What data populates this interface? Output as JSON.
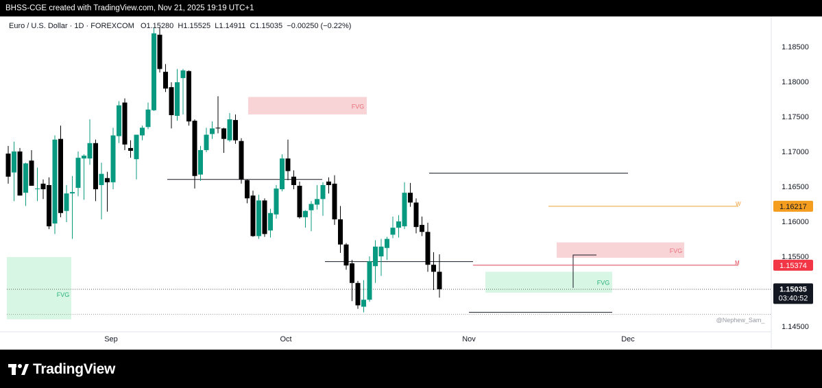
{
  "header": {
    "caption": "BHSS-CGE created with TradingView.com, Nov 21, 2025 19:19 UTC+1"
  },
  "symbol": {
    "name": "Euro / U.S. Dollar · 1D · FOREXCOM",
    "open": "O1.15280",
    "high": "H1.15525",
    "low": "L1.14911",
    "close": "C1.15035",
    "change": "−0.00250 (−0.22%)"
  },
  "colors": {
    "up": "#089981",
    "down": "#000000",
    "fvg_red": "#f7c6c9",
    "fvg_green": "#c8f2d8",
    "w_line": "#f0a030",
    "m_line": "#e04050",
    "w_tag": "#f59d1f",
    "m_tag": "#f23645"
  },
  "watermark": "@Nephew_Sam_",
  "brand": {
    "name": "TradingView",
    "logo_icon": "tradingview-logo-icon"
  },
  "chart_data": {
    "type": "candlestick",
    "y_ticks": [
      "1.18500",
      "1.18000",
      "1.17500",
      "1.17000",
      "1.16500",
      "1.16000",
      "1.15500",
      "1.14500"
    ],
    "y_tick_values": [
      1.185,
      1.18,
      1.175,
      1.17,
      1.165,
      1.16,
      1.155,
      1.145
    ],
    "x_ticks": [
      "Sep",
      "Oct",
      "Nov",
      "Dec"
    ],
    "ylim": [
      1.1435,
      1.19
    ],
    "price_labels": {
      "w": {
        "text": "1.16217",
        "value": 1.16217,
        "marker": "W"
      },
      "m": {
        "text": "1.15374",
        "value": 1.15374,
        "marker": "M"
      },
      "last": {
        "text": "1.15035",
        "value": 1.15035,
        "countdown": "03:40:52"
      }
    },
    "fvg_label": "FVG",
    "fvg_zones": [
      {
        "color": "red",
        "top": 1.1778,
        "bottom": 1.1753
      },
      {
        "color": "red",
        "top": 1.157,
        "bottom": 1.1548
      },
      {
        "color": "green",
        "top": 1.1528,
        "bottom": 1.1498
      },
      {
        "color": "green",
        "top": 1.1549,
        "bottom": 1.146
      }
    ],
    "levels": [
      1.166,
      1.15425,
      1.1669,
      1.147
    ],
    "candles": [
      {
        "o": 1.1697,
        "h": 1.1708,
        "l": 1.1654,
        "c": 1.1664
      },
      {
        "o": 1.167,
        "h": 1.1714,
        "l": 1.1629,
        "c": 1.17
      },
      {
        "o": 1.17,
        "h": 1.1705,
        "l": 1.1637,
        "c": 1.1637
      },
      {
        "o": 1.1641,
        "h": 1.1684,
        "l": 1.1622,
        "c": 1.1683
      },
      {
        "o": 1.1687,
        "h": 1.1702,
        "l": 1.1651,
        "c": 1.1651
      },
      {
        "o": 1.1647,
        "h": 1.1677,
        "l": 1.1629,
        "c": 1.1647
      },
      {
        "o": 1.1654,
        "h": 1.166,
        "l": 1.1632,
        "c": 1.1646
      },
      {
        "o": 1.1652,
        "h": 1.1663,
        "l": 1.1589,
        "c": 1.1593
      },
      {
        "o": 1.1597,
        "h": 1.1723,
        "l": 1.1582,
        "c": 1.1717
      },
      {
        "o": 1.1718,
        "h": 1.1737,
        "l": 1.1606,
        "c": 1.1612
      },
      {
        "o": 1.1615,
        "h": 1.1652,
        "l": 1.1599,
        "c": 1.164
      },
      {
        "o": 1.164,
        "h": 1.1665,
        "l": 1.1575,
        "c": 1.1642
      },
      {
        "o": 1.1648,
        "h": 1.17,
        "l": 1.1636,
        "c": 1.1691
      },
      {
        "o": 1.169,
        "h": 1.1696,
        "l": 1.1631,
        "c": 1.1694
      },
      {
        "o": 1.169,
        "h": 1.1746,
        "l": 1.1681,
        "c": 1.1712
      },
      {
        "o": 1.1712,
        "h": 1.1717,
        "l": 1.1629,
        "c": 1.1646
      },
      {
        "o": 1.1652,
        "h": 1.1684,
        "l": 1.1603,
        "c": 1.1668
      },
      {
        "o": 1.1662,
        "h": 1.1671,
        "l": 1.1614,
        "c": 1.1656
      },
      {
        "o": 1.1656,
        "h": 1.1734,
        "l": 1.1646,
        "c": 1.1723
      },
      {
        "o": 1.1722,
        "h": 1.1772,
        "l": 1.1712,
        "c": 1.1766
      },
      {
        "o": 1.177,
        "h": 1.1776,
        "l": 1.1702,
        "c": 1.171
      },
      {
        "o": 1.1705,
        "h": 1.1716,
        "l": 1.1691,
        "c": 1.1701
      },
      {
        "o": 1.1689,
        "h": 1.1724,
        "l": 1.166,
        "c": 1.1724
      },
      {
        "o": 1.1723,
        "h": 1.1737,
        "l": 1.1716,
        "c": 1.1734
      },
      {
        "o": 1.1735,
        "h": 1.177,
        "l": 1.1732,
        "c": 1.176
      },
      {
        "o": 1.1759,
        "h": 1.1877,
        "l": 1.1758,
        "c": 1.1869
      },
      {
        "o": 1.1867,
        "h": 1.1878,
        "l": 1.1813,
        "c": 1.1818
      },
      {
        "o": 1.1814,
        "h": 1.1825,
        "l": 1.1785,
        "c": 1.179
      },
      {
        "o": 1.1792,
        "h": 1.1799,
        "l": 1.1733,
        "c": 1.1752
      },
      {
        "o": 1.1751,
        "h": 1.1818,
        "l": 1.1744,
        "c": 1.1799
      },
      {
        "o": 1.1805,
        "h": 1.1818,
        "l": 1.1753,
        "c": 1.1816
      },
      {
        "o": 1.1815,
        "h": 1.1816,
        "l": 1.1737,
        "c": 1.1743
      },
      {
        "o": 1.1744,
        "h": 1.1746,
        "l": 1.1647,
        "c": 1.1665
      },
      {
        "o": 1.1667,
        "h": 1.1708,
        "l": 1.1658,
        "c": 1.1702
      },
      {
        "o": 1.1702,
        "h": 1.1734,
        "l": 1.1699,
        "c": 1.1724
      },
      {
        "o": 1.1725,
        "h": 1.1743,
        "l": 1.1718,
        "c": 1.1733
      },
      {
        "o": 1.1734,
        "h": 1.1779,
        "l": 1.1726,
        "c": 1.1733
      },
      {
        "o": 1.1733,
        "h": 1.1734,
        "l": 1.1698,
        "c": 1.1718
      },
      {
        "o": 1.1716,
        "h": 1.1755,
        "l": 1.1714,
        "c": 1.1746
      },
      {
        "o": 1.1745,
        "h": 1.1753,
        "l": 1.1711,
        "c": 1.1716
      },
      {
        "o": 1.1715,
        "h": 1.1719,
        "l": 1.1654,
        "c": 1.166
      },
      {
        "o": 1.1659,
        "h": 1.166,
        "l": 1.1626,
        "c": 1.1633
      },
      {
        "o": 1.1637,
        "h": 1.1644,
        "l": 1.1578,
        "c": 1.1579
      },
      {
        "o": 1.1579,
        "h": 1.1638,
        "l": 1.1575,
        "c": 1.163
      },
      {
        "o": 1.163,
        "h": 1.1633,
        "l": 1.1578,
        "c": 1.1582
      },
      {
        "o": 1.1587,
        "h": 1.1618,
        "l": 1.1577,
        "c": 1.1612
      },
      {
        "o": 1.161,
        "h": 1.1652,
        "l": 1.1604,
        "c": 1.1647
      },
      {
        "o": 1.1646,
        "h": 1.1696,
        "l": 1.1643,
        "c": 1.169
      },
      {
        "o": 1.169,
        "h": 1.1717,
        "l": 1.1659,
        "c": 1.1672
      },
      {
        "o": 1.1664,
        "h": 1.1673,
        "l": 1.1646,
        "c": 1.1652
      },
      {
        "o": 1.1651,
        "h": 1.1657,
        "l": 1.1604,
        "c": 1.1606
      },
      {
        "o": 1.1606,
        "h": 1.1616,
        "l": 1.1591,
        "c": 1.1615
      },
      {
        "o": 1.1616,
        "h": 1.1629,
        "l": 1.1586,
        "c": 1.1625
      },
      {
        "o": 1.1624,
        "h": 1.1652,
        "l": 1.1617,
        "c": 1.1632
      },
      {
        "o": 1.1632,
        "h": 1.1656,
        "l": 1.1608,
        "c": 1.1652
      },
      {
        "o": 1.1657,
        "h": 1.1663,
        "l": 1.164,
        "c": 1.1652
      },
      {
        "o": 1.1654,
        "h": 1.1666,
        "l": 1.1595,
        "c": 1.1603
      },
      {
        "o": 1.1603,
        "h": 1.1622,
        "l": 1.1555,
        "c": 1.1567
      },
      {
        "o": 1.1567,
        "h": 1.1569,
        "l": 1.1531,
        "c": 1.1537
      },
      {
        "o": 1.154,
        "h": 1.1545,
        "l": 1.1486,
        "c": 1.1512
      },
      {
        "o": 1.1512,
        "h": 1.1515,
        "l": 1.1475,
        "c": 1.148
      },
      {
        "o": 1.1478,
        "h": 1.1516,
        "l": 1.147,
        "c": 1.1488
      },
      {
        "o": 1.1488,
        "h": 1.155,
        "l": 1.1485,
        "c": 1.1543
      },
      {
        "o": 1.1536,
        "h": 1.1573,
        "l": 1.1512,
        "c": 1.1564
      },
      {
        "o": 1.155,
        "h": 1.1575,
        "l": 1.1522,
        "c": 1.1564
      },
      {
        "o": 1.1562,
        "h": 1.1578,
        "l": 1.1545,
        "c": 1.1575
      },
      {
        "o": 1.1581,
        "h": 1.1607,
        "l": 1.1576,
        "c": 1.1591
      },
      {
        "o": 1.1591,
        "h": 1.1609,
        "l": 1.1577,
        "c": 1.16
      },
      {
        "o": 1.1593,
        "h": 1.1656,
        "l": 1.1589,
        "c": 1.1641
      },
      {
        "o": 1.1641,
        "h": 1.1655,
        "l": 1.1621,
        "c": 1.1627
      },
      {
        "o": 1.1627,
        "h": 1.1633,
        "l": 1.1583,
        "c": 1.1592
      },
      {
        "o": 1.1595,
        "h": 1.1607,
        "l": 1.1579,
        "c": 1.1585
      },
      {
        "o": 1.1585,
        "h": 1.1598,
        "l": 1.1528,
        "c": 1.1538
      },
      {
        "o": 1.1538,
        "h": 1.1556,
        "l": 1.1502,
        "c": 1.1528
      },
      {
        "o": 1.1528,
        "h": 1.1553,
        "l": 1.1491,
        "c": 1.1503
      }
    ]
  }
}
